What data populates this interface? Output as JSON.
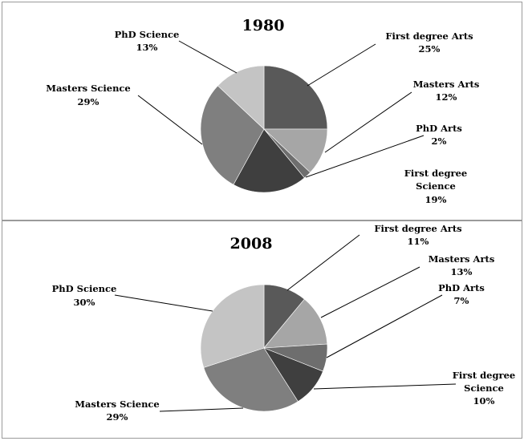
{
  "chart_data": [
    {
      "type": "pie",
      "title": "1980",
      "slices": [
        {
          "name": "First degree Arts",
          "value": 25,
          "label": "25%",
          "color": "#595959"
        },
        {
          "name": "Masters Arts",
          "value": 12,
          "label": "12%",
          "color": "#a6a6a6"
        },
        {
          "name": "PhD Arts",
          "value": 2,
          "label": "2%",
          "color": "#6e6e6e"
        },
        {
          "name": "First degree Science",
          "value": 19,
          "label": "19%",
          "color": "#3f3f3f"
        },
        {
          "name": "Masters Science",
          "value": 29,
          "label": "29%",
          "color": "#7f7f7f"
        },
        {
          "name": "PhD Science",
          "value": 13,
          "label": "13%",
          "color": "#c4c4c4"
        }
      ]
    },
    {
      "type": "pie",
      "title": "2008",
      "slices": [
        {
          "name": "First degree Arts",
          "value": 11,
          "label": "11%",
          "color": "#595959"
        },
        {
          "name": "Masters Arts",
          "value": 13,
          "label": "13%",
          "color": "#a6a6a6"
        },
        {
          "name": "PhD Arts",
          "value": 7,
          "label": "7%",
          "color": "#6e6e6e"
        },
        {
          "name": "First degree Science",
          "value": 10,
          "label": "10%",
          "color": "#3f3f3f"
        },
        {
          "name": "Masters Science",
          "value": 29,
          "label": "29%",
          "color": "#7f7f7f"
        },
        {
          "name": "PhD Science",
          "value": 30,
          "label": "30%",
          "color": "#c4c4c4"
        }
      ]
    }
  ]
}
